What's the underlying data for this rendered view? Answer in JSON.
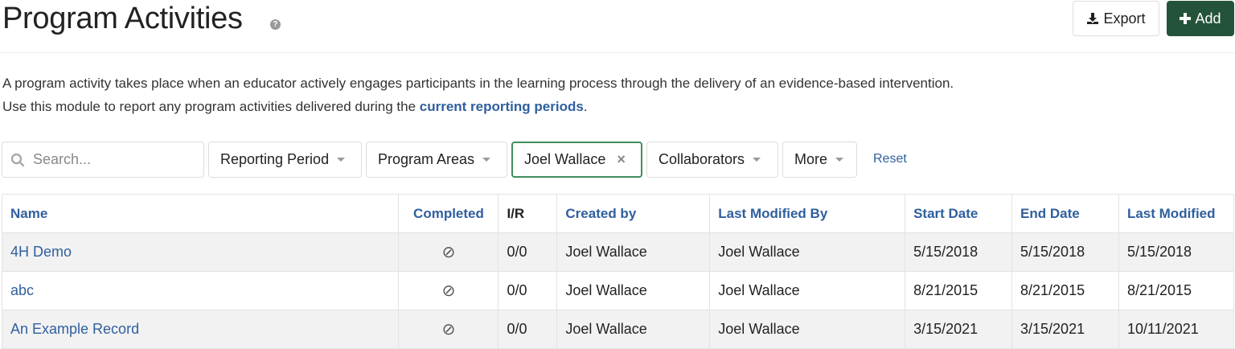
{
  "header": {
    "title": "Program Activities",
    "help_icon": "question-circle-icon",
    "export_label": "Export",
    "add_label": "Add"
  },
  "description": {
    "line1": "A program activity takes place when an educator actively engages participants in the learning process through the delivery of an evidence-based intervention.",
    "line2_prefix": "Use this module to report any program activities delivered during the ",
    "line2_link": "current reporting periods",
    "line2_suffix": "."
  },
  "filters": {
    "search_placeholder": "Search...",
    "reporting_period": "Reporting Period",
    "program_areas": "Program Areas",
    "user": "Joel Wallace",
    "collaborators": "Collaborators",
    "more": "More",
    "reset": "Reset"
  },
  "table": {
    "columns": [
      "Name",
      "Completed",
      "I/R",
      "Created by",
      "Last Modified By",
      "Start Date",
      "End Date",
      "Last Modified"
    ],
    "rows": [
      {
        "name": "4H Demo",
        "completed": "⊘",
        "ir": "0/0",
        "created_by": "Joel Wallace",
        "modified_by": "Joel Wallace",
        "start": "5/15/2018",
        "end": "5/15/2018",
        "last_modified": "5/15/2018"
      },
      {
        "name": "abc",
        "completed": "⊘",
        "ir": "0/0",
        "created_by": "Joel Wallace",
        "modified_by": "Joel Wallace",
        "start": "8/21/2015",
        "end": "8/21/2015",
        "last_modified": "8/21/2015"
      },
      {
        "name": "An Example Record",
        "completed": "⊘",
        "ir": "0/0",
        "created_by": "Joel Wallace",
        "modified_by": "Joel Wallace",
        "start": "3/15/2021",
        "end": "3/15/2021",
        "last_modified": "10/11/2021"
      }
    ]
  },
  "colors": {
    "accent": "#2f5f9e",
    "add_button": "#24533c",
    "active_filter_border": "#3f8e5c"
  }
}
